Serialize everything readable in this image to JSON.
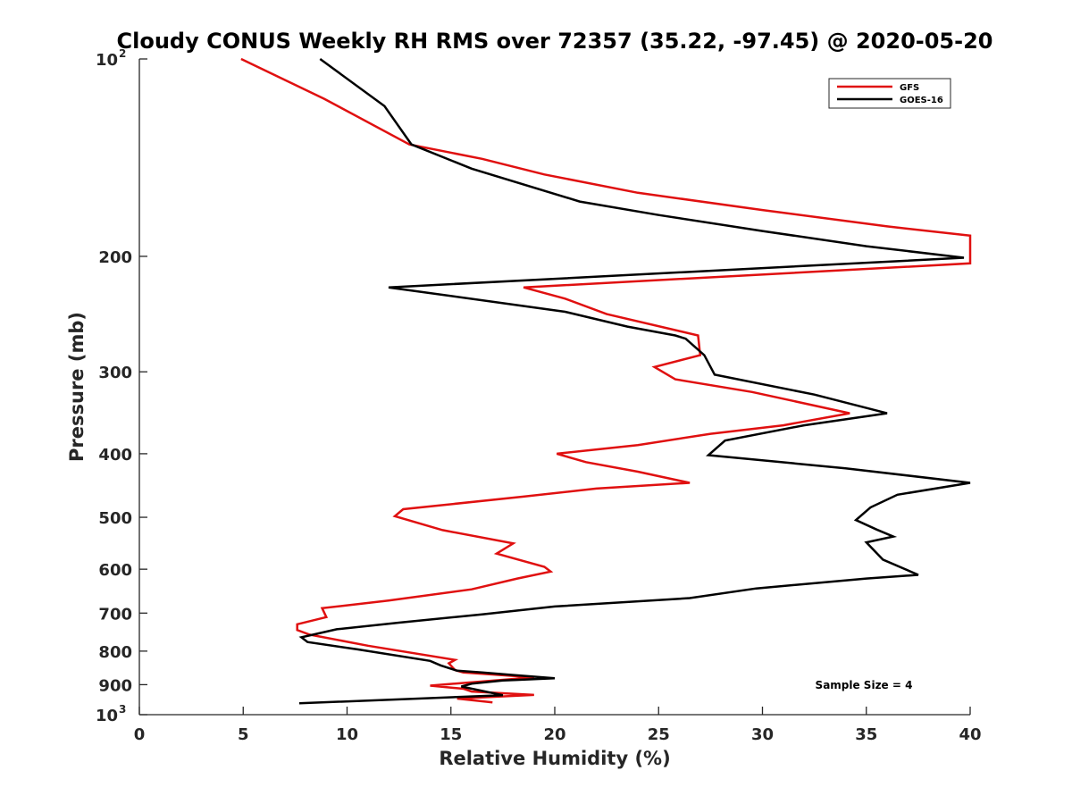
{
  "chart_data": {
    "type": "line",
    "title": "Cloudy CONUS Weekly RH RMS over 72357 (35.22, -97.45) @ 2020-05-20",
    "xlabel": "Relative Humidity (%)",
    "ylabel": "Pressure (mb)",
    "xlim": [
      0,
      40
    ],
    "ylim": [
      100,
      1000
    ],
    "yscale": "log",
    "y_reversed": true,
    "x_ticks": [
      "0",
      "5",
      "10",
      "15",
      "20",
      "25",
      "30",
      "35",
      "40"
    ],
    "y_ticks": [
      {
        "value": 100,
        "base": "10",
        "exp": "2"
      },
      {
        "value": 200,
        "label": "200"
      },
      {
        "value": 300,
        "label": "300"
      },
      {
        "value": 400,
        "label": "400"
      },
      {
        "value": 500,
        "label": "500"
      },
      {
        "value": 600,
        "label": "600"
      },
      {
        "value": 700,
        "label": "700"
      },
      {
        "value": 800,
        "label": "800"
      },
      {
        "value": 900,
        "label": "900"
      },
      {
        "value": 1000,
        "base": "10",
        "exp": "3"
      }
    ],
    "legend_position": "top-right",
    "annotation": "Sample Size = 4",
    "series": [
      {
        "name": "GFS",
        "color": "#e01010",
        "points": [
          [
            4.9,
            100
          ],
          [
            8.9,
            115
          ],
          [
            13.0,
            135
          ],
          [
            16.5,
            142
          ],
          [
            19.5,
            150
          ],
          [
            24.0,
            160
          ],
          [
            30.0,
            170
          ],
          [
            36.0,
            180
          ],
          [
            40.0,
            186
          ],
          [
            40.0,
            205
          ],
          [
            18.5,
            223
          ],
          [
            20.5,
            232
          ],
          [
            22.5,
            245
          ],
          [
            26.9,
            264
          ],
          [
            27.0,
            283
          ],
          [
            24.8,
            295
          ],
          [
            25.8,
            308
          ],
          [
            29.5,
            322
          ],
          [
            34.2,
            347
          ],
          [
            31.0,
            362
          ],
          [
            27.5,
            373
          ],
          [
            24.0,
            388
          ],
          [
            20.1,
            400
          ],
          [
            21.5,
            412
          ],
          [
            24.0,
            426
          ],
          [
            26.5,
            443
          ],
          [
            22.0,
            452
          ],
          [
            18.5,
            465
          ],
          [
            12.7,
            486
          ],
          [
            12.3,
            498
          ],
          [
            14.6,
            523
          ],
          [
            18.0,
            548
          ],
          [
            17.2,
            568
          ],
          [
            19.5,
            595
          ],
          [
            19.8,
            605
          ],
          [
            18.2,
            620
          ],
          [
            16.0,
            644
          ],
          [
            12.0,
            670
          ],
          [
            8.8,
            688
          ],
          [
            9.0,
            710
          ],
          [
            7.6,
            728
          ],
          [
            7.6,
            743
          ],
          [
            8.2,
            755
          ],
          [
            11.0,
            785
          ],
          [
            15.2,
            825
          ],
          [
            14.9,
            835
          ],
          [
            15.2,
            855
          ],
          [
            15.6,
            862
          ],
          [
            19.0,
            877
          ],
          [
            14.0,
            903
          ],
          [
            15.6,
            913
          ],
          [
            16.0,
            922
          ],
          [
            19.0,
            933
          ],
          [
            15.3,
            945
          ],
          [
            17.0,
            958
          ]
        ]
      },
      {
        "name": "GOES-16",
        "color": "#000000",
        "points": [
          [
            8.7,
            100
          ],
          [
            11.8,
            118
          ],
          [
            13.1,
            135
          ],
          [
            16.0,
            147
          ],
          [
            21.2,
            165
          ],
          [
            25.0,
            173
          ],
          [
            30.0,
            183
          ],
          [
            35.0,
            193
          ],
          [
            39.7,
            201
          ],
          [
            12.0,
            223
          ],
          [
            20.5,
            243
          ],
          [
            23.5,
            256
          ],
          [
            25.8,
            264
          ],
          [
            26.3,
            267
          ],
          [
            27.2,
            283
          ],
          [
            27.7,
            303
          ],
          [
            32.5,
            325
          ],
          [
            36.0,
            347
          ],
          [
            32.0,
            362
          ],
          [
            28.2,
            382
          ],
          [
            27.4,
            402
          ],
          [
            34.0,
            421
          ],
          [
            40.0,
            443
          ],
          [
            36.5,
            462
          ],
          [
            35.2,
            483
          ],
          [
            34.5,
            505
          ],
          [
            35.5,
            522
          ],
          [
            36.3,
            535
          ],
          [
            35.0,
            546
          ],
          [
            35.8,
            580
          ],
          [
            37.5,
            612
          ],
          [
            35.0,
            620
          ],
          [
            29.7,
            642
          ],
          [
            26.5,
            664
          ],
          [
            20.0,
            684
          ],
          [
            16.5,
            703
          ],
          [
            12.5,
            724
          ],
          [
            9.5,
            741
          ],
          [
            7.8,
            762
          ],
          [
            8.1,
            775
          ],
          [
            10.5,
            795
          ],
          [
            14.0,
            828
          ],
          [
            14.5,
            841
          ],
          [
            15.3,
            857
          ],
          [
            16.5,
            862
          ],
          [
            18.0,
            870
          ],
          [
            20.0,
            880
          ],
          [
            17.5,
            887
          ],
          [
            16.0,
            897
          ],
          [
            15.5,
            906
          ],
          [
            17.5,
            934
          ],
          [
            7.7,
            961
          ]
        ]
      }
    ]
  }
}
